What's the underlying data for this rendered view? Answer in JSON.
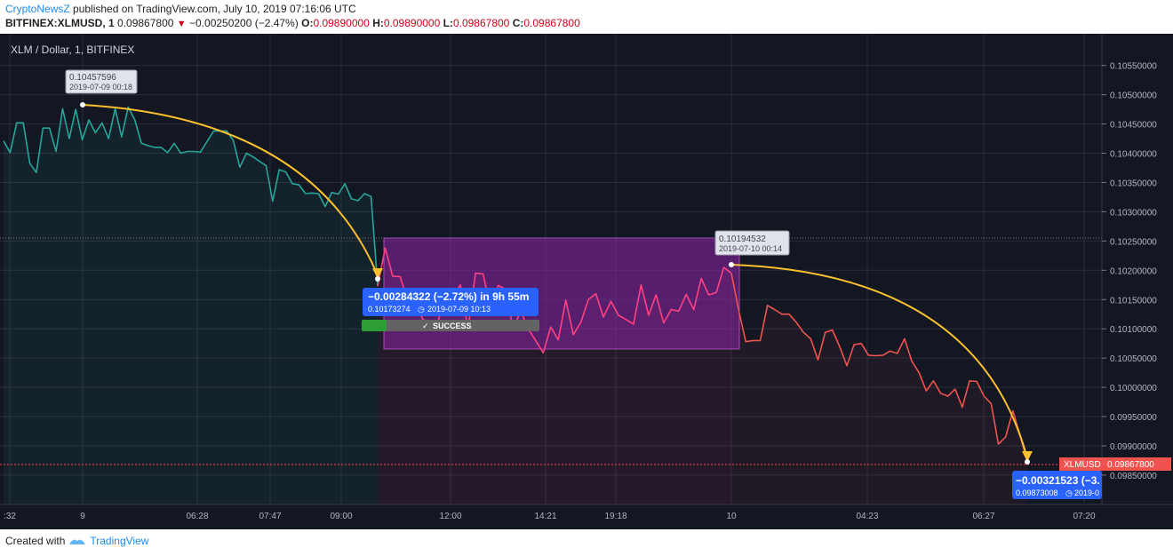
{
  "header": {
    "publisher": "CryptoNewsZ",
    "published_text": "published on TradingView.com, July 10, 2019 07:16:06 UTC",
    "symbol_line": "BITFINEX:XLMUSD, 1",
    "last": "0.09867800",
    "change": "−0.00250200 (−2.47%)",
    "o_label": "O:",
    "o_val": "0.09890000",
    "h_label": "H:",
    "h_val": "0.09890000",
    "l_label": "L:",
    "l_val": "0.09867800",
    "c_label": "C:",
    "c_val": "0.09867800"
  },
  "chart_data": {
    "type": "line",
    "title": "XLM / Dollar, 1, BITFINEX",
    "y_ticks": [
      "0.10550000",
      "0.10500000",
      "0.10450000",
      "0.10400000",
      "0.10350000",
      "0.10300000",
      "0.10250000",
      "0.10200000",
      "0.10150000",
      "0.10100000",
      "0.10050000",
      "0.10000000",
      "0.09950000",
      "0.09900000",
      "0.09850000"
    ],
    "ylim": [
      0.09815,
      0.10592
    ],
    "x_ticks": [
      ":32",
      "9",
      "06:28",
      "07:47",
      "09:00",
      "12:00",
      "14:21",
      "19:18",
      "10",
      "04:23",
      "06:27",
      "07:20"
    ],
    "series": [
      {
        "color": "#26a69a",
        "values": [
          0.10421,
          0.10401,
          0.10452,
          0.10452,
          0.10383,
          0.10367,
          0.10443,
          0.10443,
          0.10403,
          0.10476,
          0.10425,
          0.10475,
          0.10423,
          0.10457,
          0.10435,
          0.10452,
          0.10425,
          0.10476,
          0.10428,
          0.10479,
          0.10457,
          0.10417,
          0.10413,
          0.1041,
          0.1041,
          0.10401,
          0.10417,
          0.104,
          0.10403,
          0.10403,
          0.10402,
          0.1042,
          0.10438,
          0.10438,
          0.10438,
          0.10422,
          0.10376,
          0.104,
          0.10394,
          0.10386,
          0.10379,
          0.10318,
          0.10372,
          0.10368,
          0.10348,
          0.10346,
          0.10331,
          0.10332,
          0.10331,
          0.10309,
          0.10333,
          0.1033,
          0.10348,
          0.10322,
          0.10319,
          0.10331,
          0.10326,
          0.10173
        ]
      },
      {
        "color": "#ff4081",
        "values": [
          0.10173,
          0.10238,
          0.1019,
          0.10189,
          0.10147,
          0.1015,
          0.10116,
          0.10111,
          0.1011,
          0.10164,
          0.10158,
          0.10175,
          0.101,
          0.10195,
          0.10194,
          0.10135,
          0.10174,
          0.10168,
          0.10098,
          0.10131,
          0.101,
          0.1008,
          0.10059,
          0.10103,
          0.10081,
          0.10149,
          0.1009,
          0.10111,
          0.1015,
          0.1016,
          0.1012,
          0.10147,
          0.10123,
          0.10116,
          0.10108,
          0.10175,
          0.10123,
          0.10158,
          0.1011,
          0.10133,
          0.1013,
          0.10159,
          0.10133,
          0.10186,
          0.10158,
          0.10162,
          0.10205,
          0.10195
        ]
      },
      {
        "color": "#ef5350",
        "values": [
          0.10195,
          0.10133,
          0.10078,
          0.1008,
          0.1008,
          0.1014,
          0.10133,
          0.10125,
          0.10125,
          0.10111,
          0.10094,
          0.10083,
          0.10047,
          0.10094,
          0.10098,
          0.1007,
          0.10037,
          0.10073,
          0.10075,
          0.10055,
          0.10054,
          0.10055,
          0.10062,
          0.10058,
          0.10083,
          0.10045,
          0.10025,
          0.09994,
          0.10011,
          0.0999,
          0.09985,
          0.09997,
          0.09966,
          0.10011,
          0.1001,
          0.09985,
          0.09972,
          0.09903,
          0.09915,
          0.0996,
          0.09918,
          0.09873
        ]
      }
    ],
    "annotations": {
      "peak1": {
        "price": "0.10457596",
        "date": "2019-07-09 00:18"
      },
      "measure1": {
        "change": "−0.00284322 (−2.72%) in 9h 55m",
        "price": "0.10173274",
        "date": "2019-07-09  10:13",
        "status": "SUCCESS"
      },
      "peak2": {
        "price": "0.10194532",
        "date": "2019-07-10 00:14"
      },
      "measure2": {
        "change": "−0.00321523 (−3.",
        "price": "0.09873008",
        "date": "2019-0"
      },
      "last_label": {
        "symbol": "XLMUSD",
        "value": "0.09867800"
      }
    },
    "colors": {
      "background": "#131722",
      "grid": "#2a2e39",
      "axis_text": "#b2b5be",
      "up": "#26a69a",
      "mid": "#ff4081",
      "down": "#ef5350",
      "box": "#7b1fa2",
      "arrow": "#fbc02d",
      "label_blue": "#2962ff"
    }
  },
  "footer": {
    "created_with": "Created with",
    "brand": "TradingView"
  }
}
